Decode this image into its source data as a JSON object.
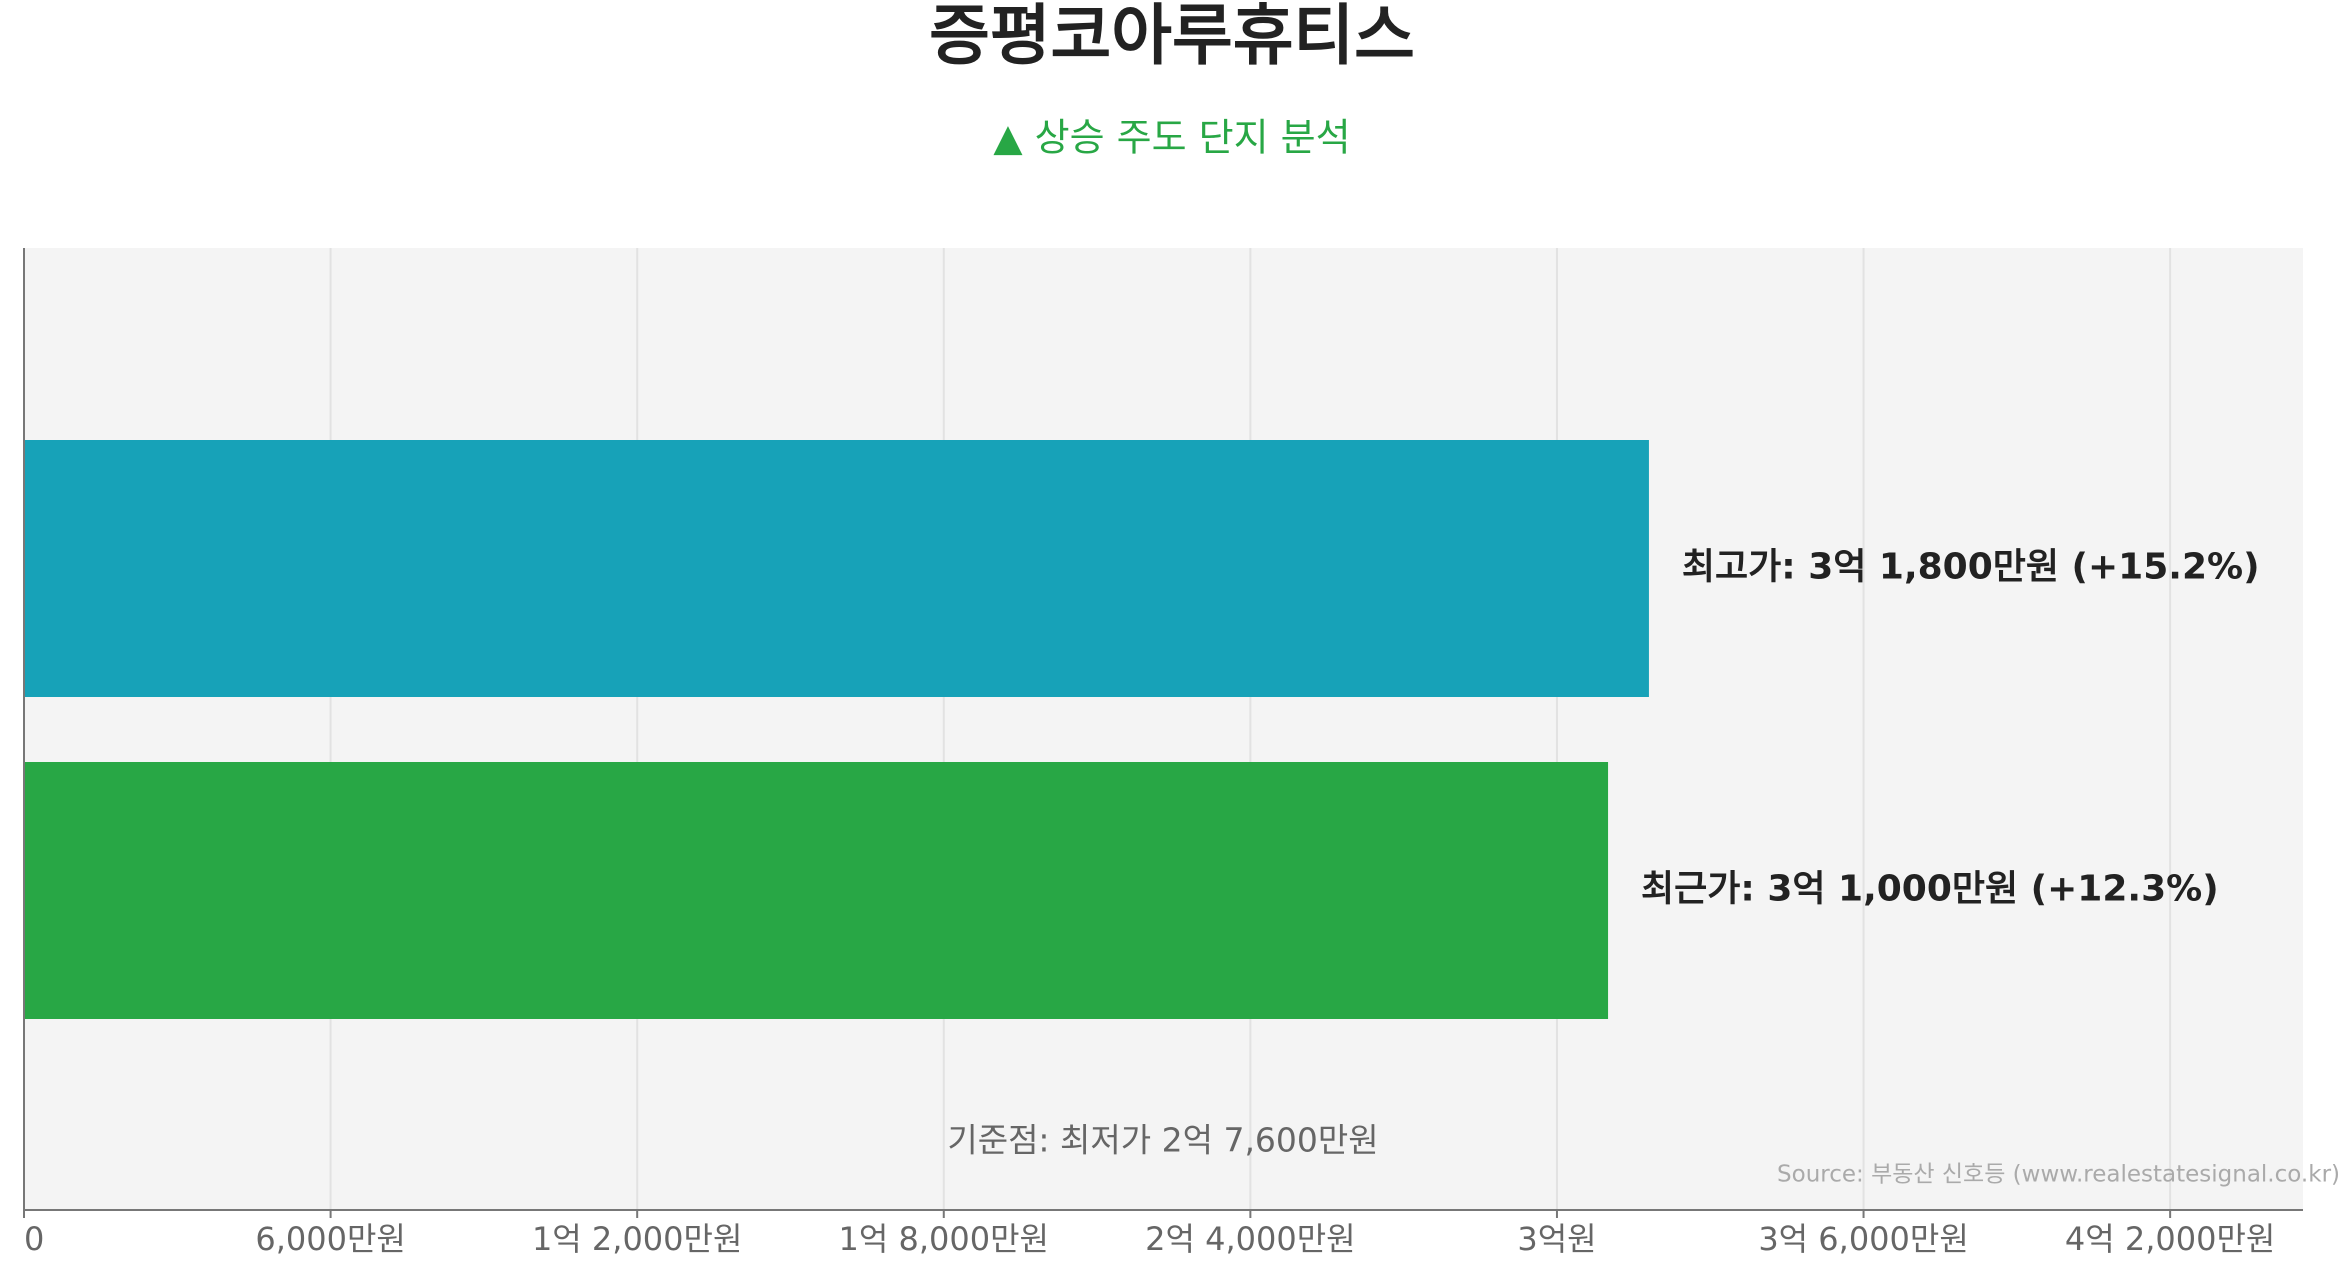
{
  "chart_data": {
    "type": "bar",
    "orientation": "horizontal",
    "title": "증평코아루휴티스",
    "subtitle": "▲ 상승 주도 단지 분석",
    "values": [
      318000000,
      310000000
    ],
    "value_labels": [
      "최고가: 3억 1,800만원 (+15.2%)",
      "최근가: 3억 1,000만원 (+12.3%)"
    ],
    "colors": [
      "#17a2b8",
      "#28a745"
    ],
    "xlim": [
      0,
      446000000
    ],
    "xticks": [
      0,
      {
        "value": 60000000,
        "label": "6,000만원"
      },
      {
        "value": 120000000,
        "label": "1억 2,000만원"
      },
      {
        "value": 180000000,
        "label": "1억 8,000만원"
      },
      {
        "value": 240000000,
        "label": "2억 4,000만원"
      },
      {
        "value": 300000000,
        "label": "3억원"
      },
      {
        "value": 360000000,
        "label": "3억 6,000만원"
      },
      {
        "value": 420000000,
        "label": "4억 2,000만원"
      }
    ],
    "grid": true,
    "annotation": "기준점: 최저가 2억 7,600만원",
    "source": "Source: 부동산 신호등 (www.realestatesignal.co.kr)"
  }
}
